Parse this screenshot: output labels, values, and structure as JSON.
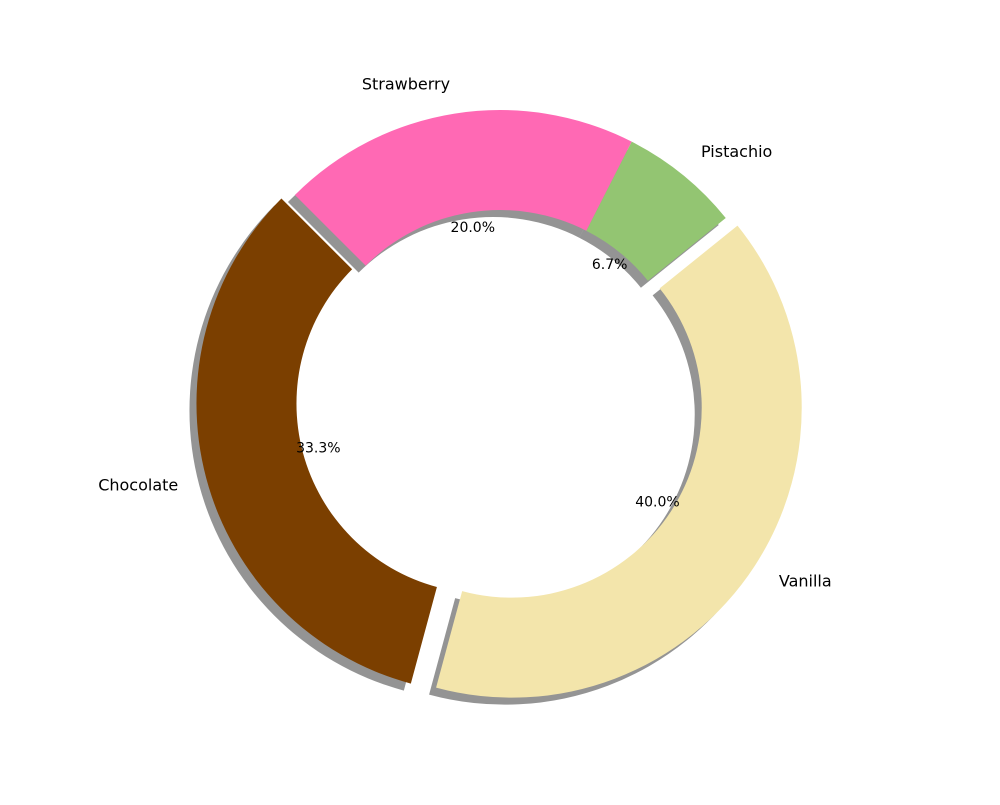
{
  "chart_data": {
    "type": "pie",
    "style": "donut",
    "shadow": true,
    "title": "",
    "slices": [
      {
        "label": "Chocolate",
        "value": 33.3,
        "pct_label": "33.3%",
        "color": "#7b3f00",
        "exploded": true
      },
      {
        "label": "Vanilla",
        "value": 40.0,
        "pct_label": "40.0%",
        "color": "#f3e5ab",
        "exploded": true
      },
      {
        "label": "Pistachio",
        "value": 6.7,
        "pct_label": "6.7%",
        "color": "#93c572",
        "exploded": false
      },
      {
        "label": "Strawberry",
        "value": 20.0,
        "pct_label": "20.0%",
        "color": "#ff69b4",
        "exploded": false
      }
    ]
  }
}
